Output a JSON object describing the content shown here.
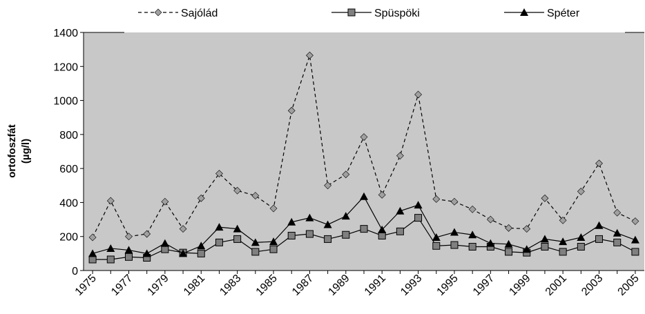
{
  "chart_data": {
    "type": "line",
    "y_label": [
      "ortofoszfát",
      "(µg/l)"
    ],
    "categories": [
      "1975",
      null,
      "1977",
      null,
      "1979",
      null,
      "1981",
      null,
      "1983",
      null,
      "1985",
      null,
      "1987",
      null,
      "1989",
      null,
      "1991",
      null,
      "1993",
      null,
      "1995",
      null,
      "1997",
      null,
      "1999",
      null,
      "2001",
      null,
      "2003",
      null,
      "2005"
    ],
    "series": [
      {
        "name": "Sajólád",
        "color": "#000000",
        "marker": "diamond",
        "dash": true,
        "values": [
          195,
          410,
          200,
          215,
          405,
          245,
          425,
          570,
          470,
          440,
          365,
          940,
          1265,
          500,
          565,
          785,
          445,
          675,
          1035,
          420,
          405,
          360,
          300,
          250,
          245,
          425,
          295,
          465,
          630,
          340,
          290
        ]
      },
      {
        "name": "Spüspöki",
        "color": "#000000",
        "marker": "square",
        "dash": false,
        "values": [
          65,
          65,
          80,
          75,
          125,
          105,
          100,
          165,
          185,
          110,
          125,
          205,
          215,
          185,
          210,
          245,
          205,
          230,
          310,
          145,
          150,
          140,
          140,
          110,
          105,
          140,
          110,
          140,
          185,
          165,
          110
        ]
      },
      {
        "name": "Spéter",
        "color": "#000000",
        "marker": "triangle",
        "dash": false,
        "values": [
          100,
          130,
          120,
          100,
          160,
          100,
          145,
          255,
          245,
          165,
          170,
          285,
          310,
          270,
          320,
          435,
          240,
          350,
          385,
          195,
          225,
          210,
          160,
          155,
          125,
          185,
          170,
          195,
          265,
          220,
          180
        ]
      }
    ],
    "ylim": [
      0,
      1400
    ],
    "yticks": [
      0,
      200,
      400,
      600,
      800,
      1000,
      1200,
      1400
    ],
    "grid": false,
    "legend": "top"
  }
}
